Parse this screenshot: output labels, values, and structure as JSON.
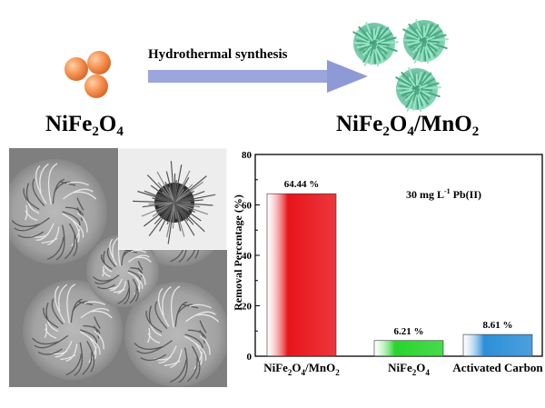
{
  "scheme": {
    "precursor_label": {
      "a": "NiFe",
      "b": "2",
      "c": "O",
      "d": "4"
    },
    "product_label": {
      "a": "NiFe",
      "b": "2",
      "c": "O",
      "d": "4",
      "e": "/MnO",
      "f": "2"
    },
    "arrow_label": "Hydrothermal synthesis",
    "arrow_color": "#9aa6dc",
    "sphere_color": "#f08a4a",
    "flower_color": "#5fbf98"
  },
  "chart_data": {
    "type": "bar",
    "categories": [
      {
        "a": "NiFe",
        "b": "2",
        "c": "O",
        "d": "4",
        "e": "/MnO",
        "f": "2"
      },
      {
        "a": "NiFe",
        "b": "2",
        "c": "O",
        "d": "4",
        "e": "",
        "f": ""
      },
      {
        "a": "Activated Carbon",
        "b": "",
        "c": "",
        "d": "",
        "e": "",
        "f": ""
      }
    ],
    "values": [
      64.44,
      6.21,
      8.61
    ],
    "data_labels": [
      "64.44 %",
      "6.21 %",
      "8.61 %"
    ],
    "colors": [
      "#e8141a",
      "#28d42c",
      "#2c8fd8"
    ],
    "ylabel": "Removal Percentage (%)",
    "ylim": [
      0,
      80
    ],
    "yticks": [
      "0",
      "20",
      "40",
      "60",
      "80"
    ],
    "annotation": {
      "a": "30 mg L",
      "b": "-1",
      "c": " Pb(II)"
    }
  }
}
